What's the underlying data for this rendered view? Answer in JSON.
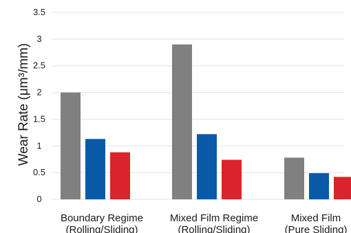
{
  "chart_data": {
    "type": "bar",
    "title": "",
    "xlabel": "",
    "ylabel": "Wear Rate (μm³/mm)",
    "ylim": [
      0,
      3.5
    ],
    "yticks": [
      "0",
      "0.5",
      "1",
      "1.5",
      "2",
      "2.5",
      "3",
      "3.5"
    ],
    "ytick_values": [
      0,
      0.5,
      1,
      1.5,
      2,
      2.5,
      3,
      3.5
    ],
    "grid": true,
    "legend": "none",
    "categories": [
      {
        "line1": "Boundary Regime",
        "line2": "(Rolling/Sliding)"
      },
      {
        "line1": "Mixed Film Regime",
        "line2": "(Rolling/Sliding)"
      },
      {
        "line1": "Mixed Film",
        "line2": "(Pure Sliding)"
      }
    ],
    "series": [
      {
        "color": "#808080",
        "values": [
          2.0,
          2.9,
          0.78
        ]
      },
      {
        "color": "#0a5aa8",
        "values": [
          1.13,
          1.22,
          0.49
        ]
      },
      {
        "color": "#d9232d",
        "values": [
          0.88,
          0.74,
          0.42
        ]
      }
    ]
  }
}
